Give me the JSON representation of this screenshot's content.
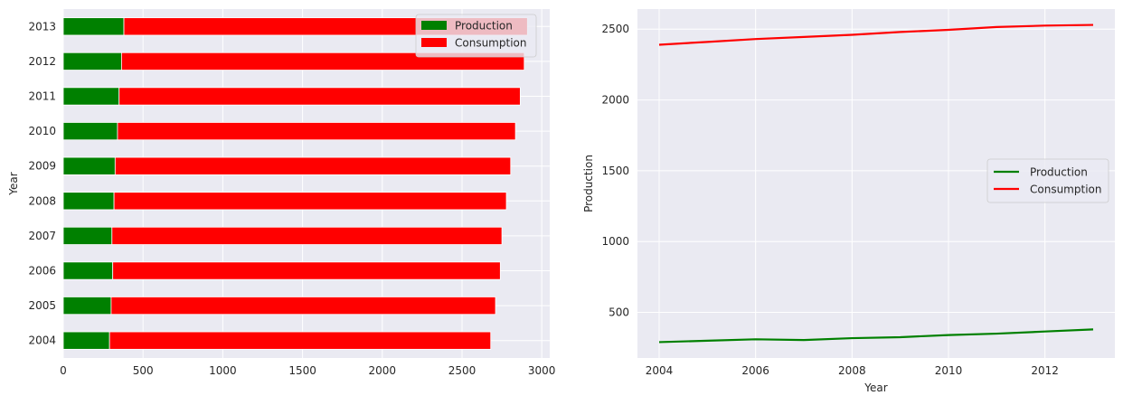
{
  "colors": {
    "production": "#008000",
    "consumption": "#ff0000",
    "panel_bg": "#eaeaf2",
    "grid": "#ffffff"
  },
  "chart_data": [
    {
      "type": "bar",
      "orientation": "horizontal",
      "stacked": true,
      "categories": [
        "2004",
        "2005",
        "2006",
        "2007",
        "2008",
        "2009",
        "2010",
        "2011",
        "2012",
        "2013"
      ],
      "series": [
        {
          "name": "Production",
          "values": [
            290,
            300,
            310,
            305,
            318,
            325,
            340,
            350,
            365,
            380
          ]
        },
        {
          "name": "Consumption",
          "values": [
            2390,
            2410,
            2430,
            2445,
            2460,
            2480,
            2495,
            2515,
            2525,
            2530
          ]
        }
      ],
      "xlabel": "",
      "ylabel": "Year",
      "xlim": [
        0,
        3050
      ],
      "xticks": [
        0,
        500,
        1000,
        1500,
        2000,
        2500,
        3000
      ],
      "grid": true,
      "legend": "top-right"
    },
    {
      "type": "line",
      "x": [
        2004,
        2005,
        2006,
        2007,
        2008,
        2009,
        2010,
        2011,
        2012,
        2013
      ],
      "series": [
        {
          "name": "Production",
          "values": [
            290,
            300,
            310,
            305,
            318,
            325,
            340,
            350,
            365,
            380
          ]
        },
        {
          "name": "Consumption",
          "values": [
            2390,
            2410,
            2430,
            2445,
            2460,
            2480,
            2495,
            2515,
            2525,
            2530
          ]
        }
      ],
      "xlabel": "Year",
      "ylabel": "Production",
      "xlim": [
        2003.55,
        2013.45
      ],
      "ylim": [
        178,
        2642
      ],
      "xticks": [
        2004,
        2006,
        2008,
        2010,
        2012
      ],
      "yticks": [
        500,
        1000,
        1500,
        2000,
        2500
      ],
      "grid": true,
      "legend": "center-right"
    }
  ]
}
